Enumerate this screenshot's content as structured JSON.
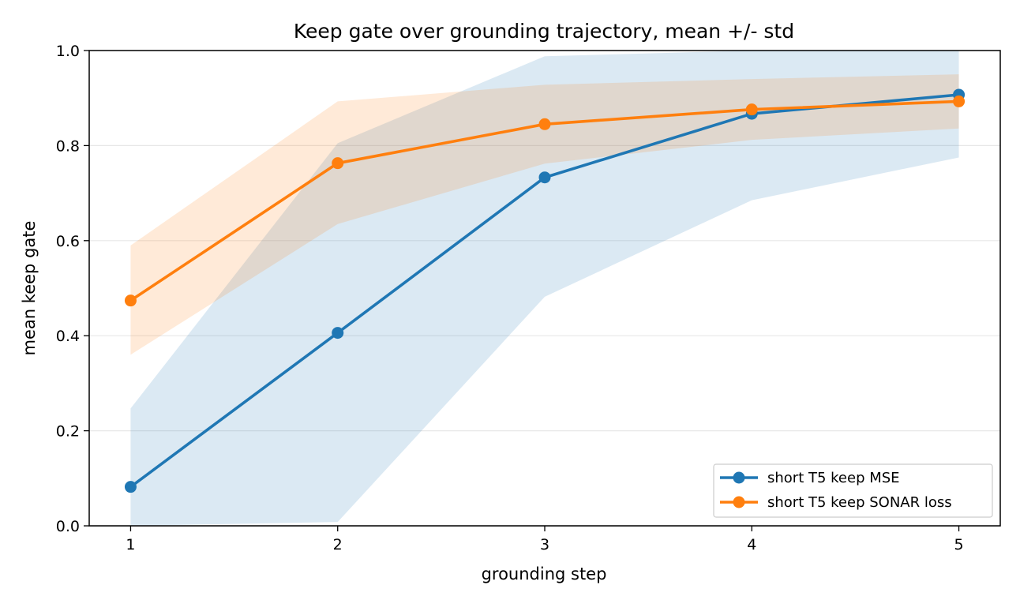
{
  "chart_data": {
    "type": "line",
    "title": "Keep gate over grounding trajectory, mean +/- std",
    "xlabel": "grounding step",
    "ylabel": "mean keep gate",
    "x": [
      1,
      2,
      3,
      4,
      5
    ],
    "xlim": [
      0.8,
      5.2
    ],
    "ylim": [
      0.0,
      1.0
    ],
    "xticks": [
      "1",
      "2",
      "3",
      "4",
      "5"
    ],
    "yticks": [
      "0.0",
      "0.2",
      "0.4",
      "0.6",
      "0.8",
      "1.0"
    ],
    "ytick_values": [
      0.0,
      0.2,
      0.4,
      0.6,
      0.8,
      1.0
    ],
    "grid": "horizontal",
    "legend_position": "lower-right",
    "series": [
      {
        "name": "short T5 keep MSE",
        "color": "#1f77b4",
        "band_color": "#1f77b4",
        "values": [
          0.082,
          0.406,
          0.733,
          0.867,
          0.907
        ],
        "std_lower": [
          0.0,
          0.008,
          0.482,
          0.685,
          0.775
        ],
        "std_upper": [
          0.247,
          0.805,
          0.988,
          1.0,
          1.0
        ]
      },
      {
        "name": "short T5 keep SONAR loss",
        "color": "#ff7f0e",
        "band_color": "#ff7f0e",
        "values": [
          0.474,
          0.763,
          0.845,
          0.876,
          0.893
        ],
        "std_lower": [
          0.36,
          0.635,
          0.762,
          0.812,
          0.836
        ],
        "std_upper": [
          0.59,
          0.893,
          0.928,
          0.94,
          0.95
        ]
      }
    ]
  }
}
